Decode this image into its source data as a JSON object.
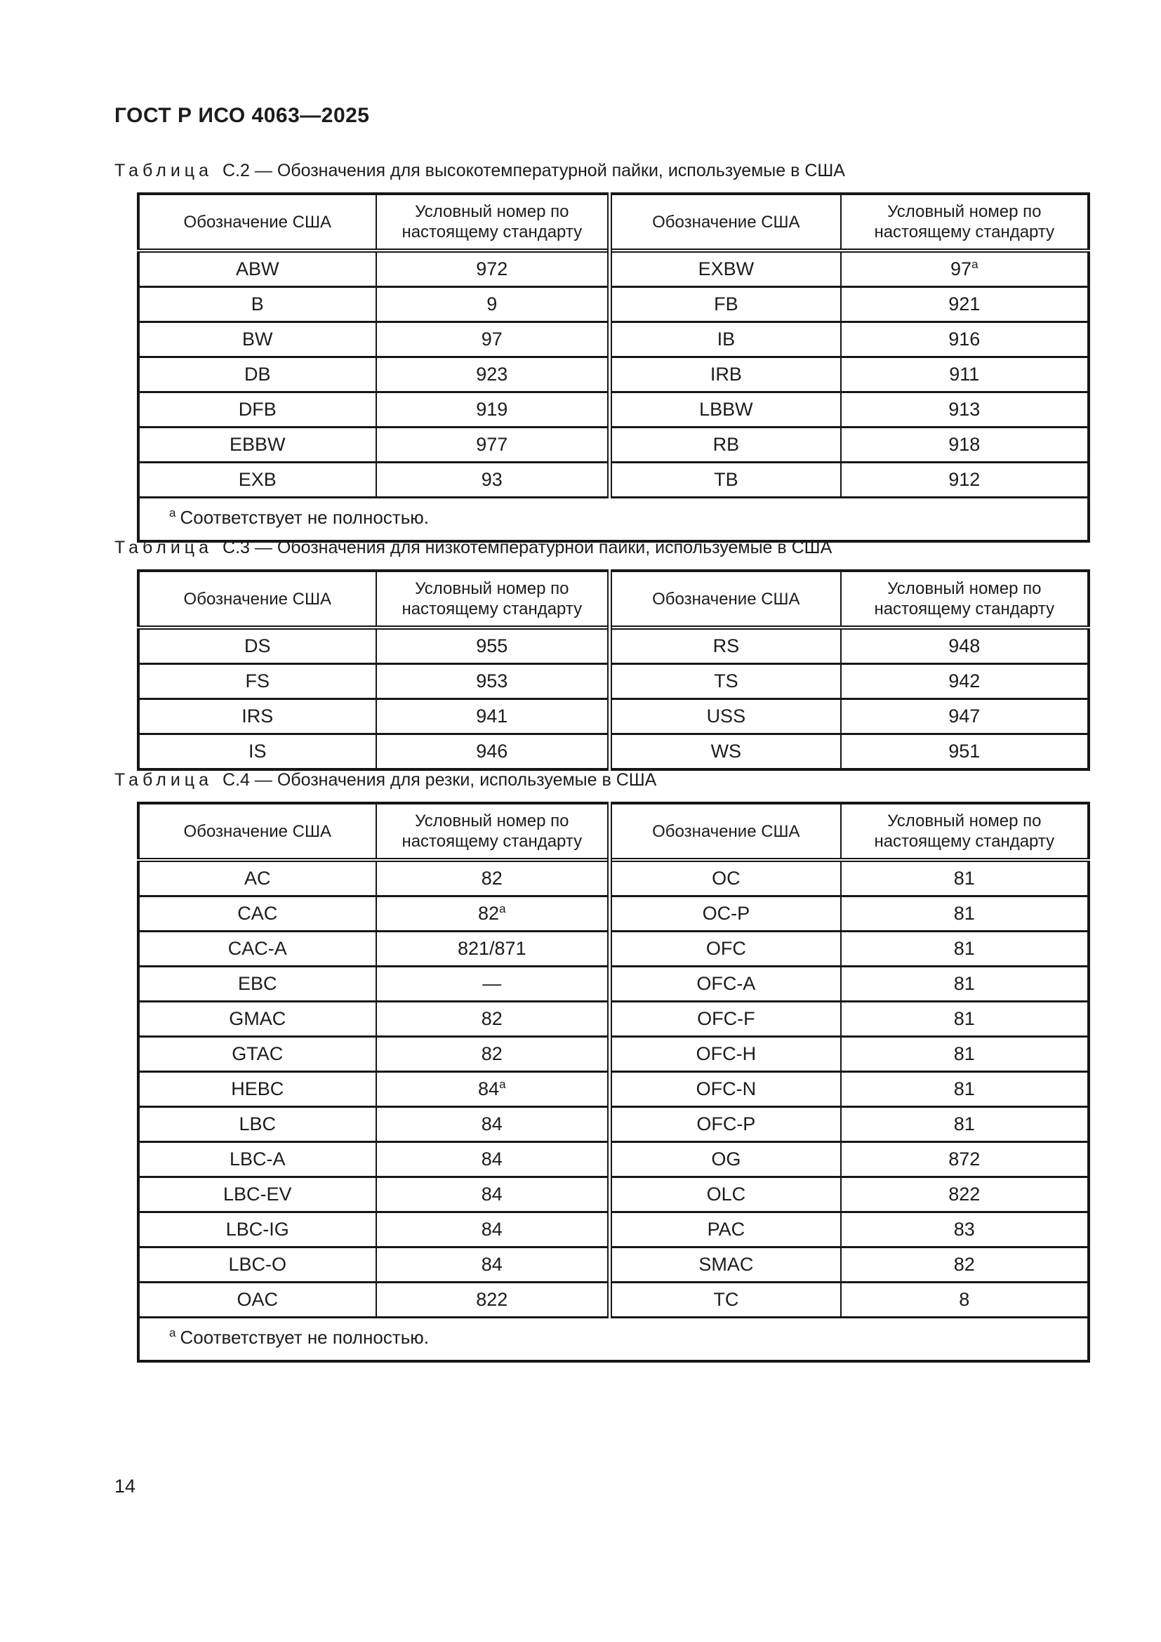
{
  "page": {
    "header": "ГОСТ Р ИСО 4063—2025",
    "page_number": "14"
  },
  "tables": [
    {
      "title_word": "Таблица",
      "title_rest": "С.2 — Обозначения для высокотемпературной пайки, используемые в США",
      "columns": [
        "Обозначение США",
        "Условный номер по настоящему стандарту",
        "Обозначение США",
        "Условный номер по настоящему стандарту"
      ],
      "rows": [
        [
          "ABW",
          "972",
          "EXBW",
          "97^a"
        ],
        [
          "B",
          "9",
          "FB",
          "921"
        ],
        [
          "BW",
          "97",
          "IB",
          "916"
        ],
        [
          "DB",
          "923",
          "IRB",
          "911"
        ],
        [
          "DFB",
          "919",
          "LBBW",
          "913"
        ],
        [
          "EBBW",
          "977",
          "RB",
          "918"
        ],
        [
          "EXB",
          "93",
          "TB",
          "912"
        ]
      ],
      "footnote": {
        "marker": "a",
        "text": "Соответствует не полностью."
      }
    },
    {
      "title_word": "Таблица",
      "title_rest": "С.3 — Обозначения для низкотемпературной пайки, используемые в США",
      "columns": [
        "Обозначение США",
        "Условный номер по настоящему стандарту",
        "Обозначение США",
        "Условный номер по настоящему стандарту"
      ],
      "rows": [
        [
          "DS",
          "955",
          "RS",
          "948"
        ],
        [
          "FS",
          "953",
          "TS",
          "942"
        ],
        [
          "IRS",
          "941",
          "USS",
          "947"
        ],
        [
          "IS",
          "946",
          "WS",
          "951"
        ]
      ],
      "footnote": null
    },
    {
      "title_word": "Таблица",
      "title_rest": "С.4 — Обозначения для резки, используемые в США",
      "columns": [
        "Обозначение США",
        "Условный номер по настоящему стандарту",
        "Обозначение США",
        "Условный номер по настоящему стандарту"
      ],
      "rows": [
        [
          "AC",
          "82",
          "OC",
          "81"
        ],
        [
          "CAC",
          "82^a",
          "OC-P",
          "81"
        ],
        [
          "CAC-A",
          "821/871",
          "OFC",
          "81"
        ],
        [
          "EBC",
          "—",
          "OFC-A",
          "81"
        ],
        [
          "GMAC",
          "82",
          "OFC-F",
          "81"
        ],
        [
          "GTAC",
          "82",
          "OFC-H",
          "81"
        ],
        [
          "HEBC",
          "84^a",
          "OFC-N",
          "81"
        ],
        [
          "LBC",
          "84",
          "OFC-P",
          "81"
        ],
        [
          "LBC-A",
          "84",
          "OG",
          "872"
        ],
        [
          "LBC-EV",
          "84",
          "OLC",
          "822"
        ],
        [
          "LBC-IG",
          "84",
          "PAC",
          "83"
        ],
        [
          "LBC-O",
          "84",
          "SMAC",
          "82"
        ],
        [
          "OAC",
          "822",
          "TC",
          "8"
        ]
      ],
      "footnote": {
        "marker": "a",
        "text": "Соответствует не полностью."
      }
    }
  ]
}
